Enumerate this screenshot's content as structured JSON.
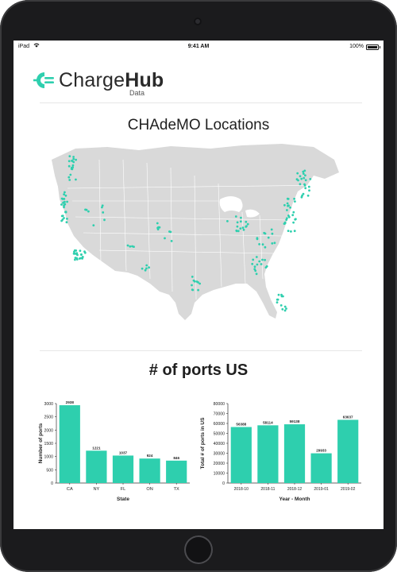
{
  "status_bar": {
    "carrier": "iPad",
    "time": "9:41 AM",
    "battery_text": "100%",
    "battery_level": 1.0
  },
  "brand": {
    "name_part1": "Charge",
    "name_part2": "Hub",
    "subtitle": "Data",
    "accent_color": "#2ecfae",
    "logo_icon": "plug-icon"
  },
  "map_section": {
    "title": "CHAdeMO Locations",
    "land_color": "#d9d9d9",
    "marker_color": "#2ecfae"
  },
  "ports_section": {
    "title": "# of ports US"
  },
  "chart_data": [
    {
      "type": "bar",
      "xlabel": "State",
      "ylabel": "Number of ports",
      "categories": [
        "CA",
        "NY",
        "FL",
        "ON",
        "TX"
      ],
      "values": [
        2938,
        1221,
        1037,
        924,
        846
      ],
      "data_labels": [
        "2938",
        "1221",
        "1037",
        "924",
        "846"
      ],
      "yticks": [
        0,
        500,
        1000,
        1500,
        2000,
        2500,
        3000
      ],
      "ylim": [
        0,
        3000
      ],
      "color": "#2ecfae"
    },
    {
      "type": "bar",
      "xlabel": "Year - Month",
      "ylabel": "Total # of ports in US",
      "categories": [
        "2018-10",
        "2018-11",
        "2018-12",
        "2019-01",
        "2019-02"
      ],
      "values": [
        56388,
        58114,
        59138,
        29933,
        63637
      ],
      "data_labels": [
        "56388",
        "58114",
        "59138",
        "29933",
        "63637"
      ],
      "yticks": [
        0,
        10000,
        20000,
        30000,
        40000,
        50000,
        60000,
        70000,
        80000
      ],
      "ylim": [
        0,
        80000
      ],
      "color": "#2ecfae"
    }
  ]
}
